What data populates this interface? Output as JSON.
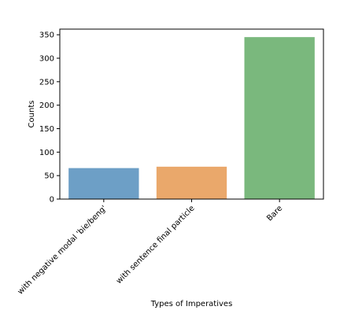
{
  "chart_data": {
    "type": "bar",
    "title": "",
    "xlabel": "Types of Imperatives",
    "ylabel": "Counts",
    "categories": [
      "with negative modal 'bie/beng'",
      "with sentence final particle",
      "Bare"
    ],
    "values": [
      66,
      69,
      345
    ],
    "ylim": [
      0,
      362
    ],
    "yticks": [
      0,
      50,
      100,
      150,
      200,
      250,
      300,
      350
    ],
    "colors": [
      "#6d9fc6",
      "#eaa86b",
      "#7ab87d"
    ],
    "grid": false,
    "legend": "none"
  }
}
